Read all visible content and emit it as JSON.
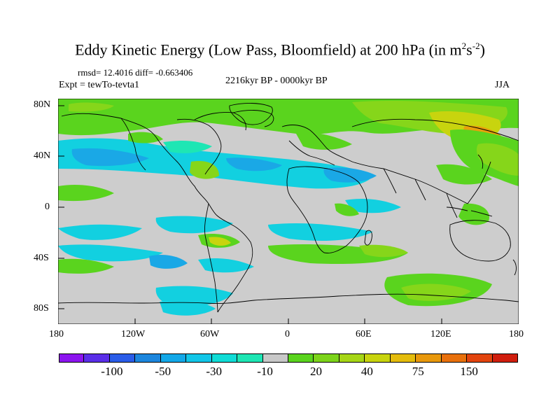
{
  "title": {
    "main": "Eddy Kinetic Energy (Low Pass, Bloomfield) at 200 hPa (in m",
    "sup1": "2",
    "mid": "s",
    "sup2": "-2",
    "close": ")"
  },
  "stats": "rmsd= 12.4016 diff= -0.663406",
  "experiment": "Expt = tewTo-tevta1",
  "period": "2216kyr BP - 0000kyr BP",
  "season": "JJA",
  "y_ticks": [
    "80N",
    "40N",
    "0",
    "40S",
    "80S"
  ],
  "x_ticks": [
    "180",
    "120W",
    "60W",
    "0",
    "60E",
    "120E",
    "180"
  ],
  "legend": {
    "colors": [
      "#8c14ef",
      "#5a2ee8",
      "#2a5ce8",
      "#1c86dd",
      "#13a8e8",
      "#12c6e8",
      "#10dcd6",
      "#1ee6b4",
      "#c8c8c8",
      "#5ad41e",
      "#7cd41a",
      "#a6d616",
      "#c8d40e",
      "#e4bc0c",
      "#e8980c",
      "#e8700c",
      "#e2440e",
      "#d01e0e"
    ],
    "labels": [
      "-100",
      "-50",
      "-30",
      "-10",
      "20",
      "40",
      "75",
      "150"
    ]
  },
  "colors": {
    "neutral": "#cdcdcd",
    "cyan": "#12d0e0",
    "blue": "#1aa8e6",
    "teal": "#1ee6b4",
    "green": "#5ad41e",
    "lightgreen": "#86d61a",
    "yellowgreen": "#c8d40e",
    "orange": "#e8a00c"
  }
}
